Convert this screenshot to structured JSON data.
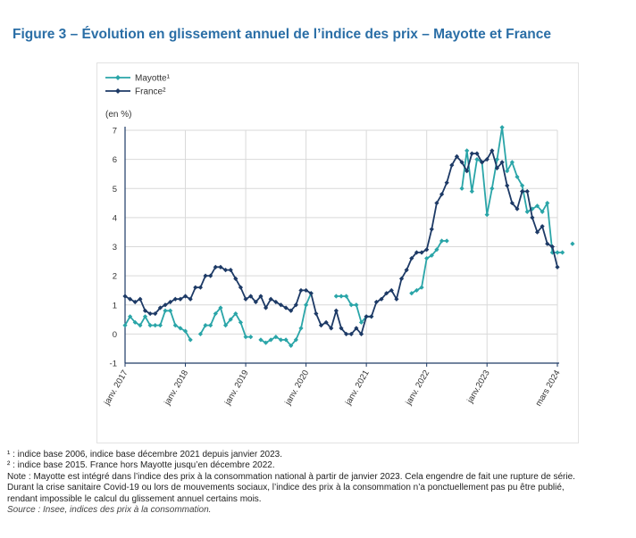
{
  "title": "Figure 3 – Évolution en glissement annuel de l’indice des prix – Mayotte et France",
  "colors": {
    "title": "#2a6ea6",
    "mayotte": "#2aa5a8",
    "france": "#1d3a66",
    "grid": "#d9d9d9",
    "axis": "#1d3a66"
  },
  "chart_data": {
    "type": "line",
    "ylabel": "(en %)",
    "ylim": [
      -1,
      7
    ],
    "yticks": [
      -1,
      0,
      1,
      2,
      3,
      4,
      5,
      6,
      7
    ],
    "xlim": [
      "2017-01",
      "2024-03"
    ],
    "xticks": [
      {
        "date": "2017-01",
        "label": "janv. 2017"
      },
      {
        "date": "2018-01",
        "label": "janv. 2018"
      },
      {
        "date": "2019-01",
        "label": "janv. 2019"
      },
      {
        "date": "2020-01",
        "label": "janv. 2020"
      },
      {
        "date": "2021-01",
        "label": "janv. 2021"
      },
      {
        "date": "2022-01",
        "label": "janv. 2022"
      },
      {
        "date": "2023-01",
        "label": "janv.2023"
      },
      {
        "date": "2024-03",
        "label": "mars 2024"
      }
    ],
    "grid": true,
    "legend_position": "top-left",
    "series": [
      {
        "name": "Mayotte¹",
        "points": [
          [
            "2017-01",
            0.3
          ],
          [
            "2017-02",
            0.6
          ],
          [
            "2017-03",
            0.4
          ],
          [
            "2017-04",
            0.3
          ],
          [
            "2017-05",
            0.6
          ],
          [
            "2017-06",
            0.3
          ],
          [
            "2017-07",
            0.3
          ],
          [
            "2017-08",
            0.3
          ],
          [
            "2017-09",
            0.8
          ],
          [
            "2017-10",
            0.8
          ],
          [
            "2017-11",
            0.3
          ],
          [
            "2017-12",
            0.2
          ],
          [
            "2018-01",
            0.1
          ],
          [
            "2018-02",
            -0.2
          ],
          [
            "2018-04",
            0.0
          ],
          [
            "2018-05",
            0.3
          ],
          [
            "2018-06",
            0.3
          ],
          [
            "2018-07",
            0.7
          ],
          [
            "2018-08",
            0.9
          ],
          [
            "2018-09",
            0.3
          ],
          [
            "2018-10",
            0.5
          ],
          [
            "2018-11",
            0.7
          ],
          [
            "2018-12",
            0.4
          ],
          [
            "2019-01",
            -0.1
          ],
          [
            "2019-02",
            -0.1
          ],
          [
            "2019-04",
            -0.2
          ],
          [
            "2019-05",
            -0.3
          ],
          [
            "2019-06",
            -0.2
          ],
          [
            "2019-07",
            -0.1
          ],
          [
            "2019-08",
            -0.2
          ],
          [
            "2019-09",
            -0.2
          ],
          [
            "2019-10",
            -0.4
          ],
          [
            "2019-11",
            -0.2
          ],
          [
            "2019-12",
            0.2
          ],
          [
            "2020-01",
            1.0
          ],
          [
            "2020-02",
            1.4
          ],
          [
            "2020-07",
            1.3
          ],
          [
            "2020-08",
            1.3
          ],
          [
            "2020-09",
            1.3
          ],
          [
            "2020-10",
            1.0
          ],
          [
            "2020-11",
            1.0
          ],
          [
            "2020-12",
            0.4
          ],
          [
            "2021-01",
            0.6
          ],
          [
            "2021-02",
            0.6
          ],
          [
            "2021-10",
            1.4
          ],
          [
            "2021-11",
            1.5
          ],
          [
            "2021-12",
            1.6
          ],
          [
            "2022-01",
            2.6
          ],
          [
            "2022-02",
            2.7
          ],
          [
            "2022-03",
            2.9
          ],
          [
            "2022-04",
            3.2
          ],
          [
            "2022-05",
            3.2
          ],
          [
            "2022-08",
            5.0
          ],
          [
            "2022-09",
            6.3
          ],
          [
            "2022-10",
            4.9
          ],
          [
            "2022-11",
            6.0
          ],
          [
            "2022-12",
            5.9
          ],
          [
            "2023-01",
            4.1
          ],
          [
            "2023-02",
            5.0
          ],
          [
            "2023-03",
            6.0
          ],
          [
            "2023-04",
            7.1
          ],
          [
            "2023-05",
            5.6
          ],
          [
            "2023-06",
            5.9
          ],
          [
            "2023-07",
            5.4
          ],
          [
            "2023-08",
            5.1
          ],
          [
            "2023-09",
            4.2
          ],
          [
            "2023-10",
            4.3
          ],
          [
            "2023-11",
            4.4
          ],
          [
            "2023-12",
            4.2
          ],
          [
            "2024-01",
            4.5
          ],
          [
            "2024-02",
            2.8
          ],
          [
            "2024-03",
            2.8
          ],
          [
            "2024-04",
            2.8
          ],
          [
            "2024-06",
            3.1
          ]
        ]
      },
      {
        "name": "France²",
        "points": [
          [
            "2017-01",
            1.3
          ],
          [
            "2017-02",
            1.2
          ],
          [
            "2017-03",
            1.1
          ],
          [
            "2017-04",
            1.2
          ],
          [
            "2017-05",
            0.8
          ],
          [
            "2017-06",
            0.7
          ],
          [
            "2017-07",
            0.7
          ],
          [
            "2017-08",
            0.9
          ],
          [
            "2017-09",
            1.0
          ],
          [
            "2017-10",
            1.1
          ],
          [
            "2017-11",
            1.2
          ],
          [
            "2017-12",
            1.2
          ],
          [
            "2018-01",
            1.3
          ],
          [
            "2018-02",
            1.2
          ],
          [
            "2018-03",
            1.6
          ],
          [
            "2018-04",
            1.6
          ],
          [
            "2018-05",
            2.0
          ],
          [
            "2018-06",
            2.0
          ],
          [
            "2018-07",
            2.3
          ],
          [
            "2018-08",
            2.3
          ],
          [
            "2018-09",
            2.2
          ],
          [
            "2018-10",
            2.2
          ],
          [
            "2018-11",
            1.9
          ],
          [
            "2018-12",
            1.6
          ],
          [
            "2019-01",
            1.2
          ],
          [
            "2019-02",
            1.3
          ],
          [
            "2019-03",
            1.1
          ],
          [
            "2019-04",
            1.3
          ],
          [
            "2019-05",
            0.9
          ],
          [
            "2019-06",
            1.2
          ],
          [
            "2019-07",
            1.1
          ],
          [
            "2019-08",
            1.0
          ],
          [
            "2019-09",
            0.9
          ],
          [
            "2019-10",
            0.8
          ],
          [
            "2019-11",
            1.0
          ],
          [
            "2019-12",
            1.5
          ],
          [
            "2020-01",
            1.5
          ],
          [
            "2020-02",
            1.4
          ],
          [
            "2020-03",
            0.7
          ],
          [
            "2020-04",
            0.3
          ],
          [
            "2020-05",
            0.4
          ],
          [
            "2020-06",
            0.2
          ],
          [
            "2020-07",
            0.8
          ],
          [
            "2020-08",
            0.2
          ],
          [
            "2020-09",
            0.0
          ],
          [
            "2020-10",
            0.0
          ],
          [
            "2020-11",
            0.2
          ],
          [
            "2020-12",
            0.0
          ],
          [
            "2021-01",
            0.6
          ],
          [
            "2021-02",
            0.6
          ],
          [
            "2021-03",
            1.1
          ],
          [
            "2021-04",
            1.2
          ],
          [
            "2021-05",
            1.4
          ],
          [
            "2021-06",
            1.5
          ],
          [
            "2021-07",
            1.2
          ],
          [
            "2021-08",
            1.9
          ],
          [
            "2021-09",
            2.2
          ],
          [
            "2021-10",
            2.6
          ],
          [
            "2021-11",
            2.8
          ],
          [
            "2021-12",
            2.8
          ],
          [
            "2022-01",
            2.9
          ],
          [
            "2022-02",
            3.6
          ],
          [
            "2022-03",
            4.5
          ],
          [
            "2022-04",
            4.8
          ],
          [
            "2022-05",
            5.2
          ],
          [
            "2022-06",
            5.8
          ],
          [
            "2022-07",
            6.1
          ],
          [
            "2022-08",
            5.9
          ],
          [
            "2022-09",
            5.6
          ],
          [
            "2022-10",
            6.2
          ],
          [
            "2022-11",
            6.2
          ],
          [
            "2022-12",
            5.9
          ],
          [
            "2023-01",
            6.0
          ],
          [
            "2023-02",
            6.3
          ],
          [
            "2023-03",
            5.7
          ],
          [
            "2023-04",
            5.9
          ],
          [
            "2023-05",
            5.1
          ],
          [
            "2023-06",
            4.5
          ],
          [
            "2023-07",
            4.3
          ],
          [
            "2023-08",
            4.9
          ],
          [
            "2023-09",
            4.9
          ],
          [
            "2023-10",
            4.0
          ],
          [
            "2023-11",
            3.5
          ],
          [
            "2023-12",
            3.7
          ],
          [
            "2024-01",
            3.1
          ],
          [
            "2024-02",
            3.0
          ],
          [
            "2024-03",
            2.3
          ]
        ]
      }
    ]
  },
  "notes": [
    "¹ : indice base 2006, indice base décembre 2021 depuis janvier 2023.",
    "² : indice base 2015. France hors Mayotte jusqu’en décembre 2022.",
    "Note : Mayotte est intégré dans l’indice des prix à la consommation national à partir de janvier 2023. Cela engendre de fait une rupture de série.",
    "Durant la crise sanitaire Covid-19 ou lors de mouvements sociaux, l’indice des prix à la consommation n’a ponctuellement pas pu être publié,",
    "rendant impossible le calcul du glissement annuel certains mois."
  ],
  "source": "Source : Insee, indices des prix à la consommation."
}
